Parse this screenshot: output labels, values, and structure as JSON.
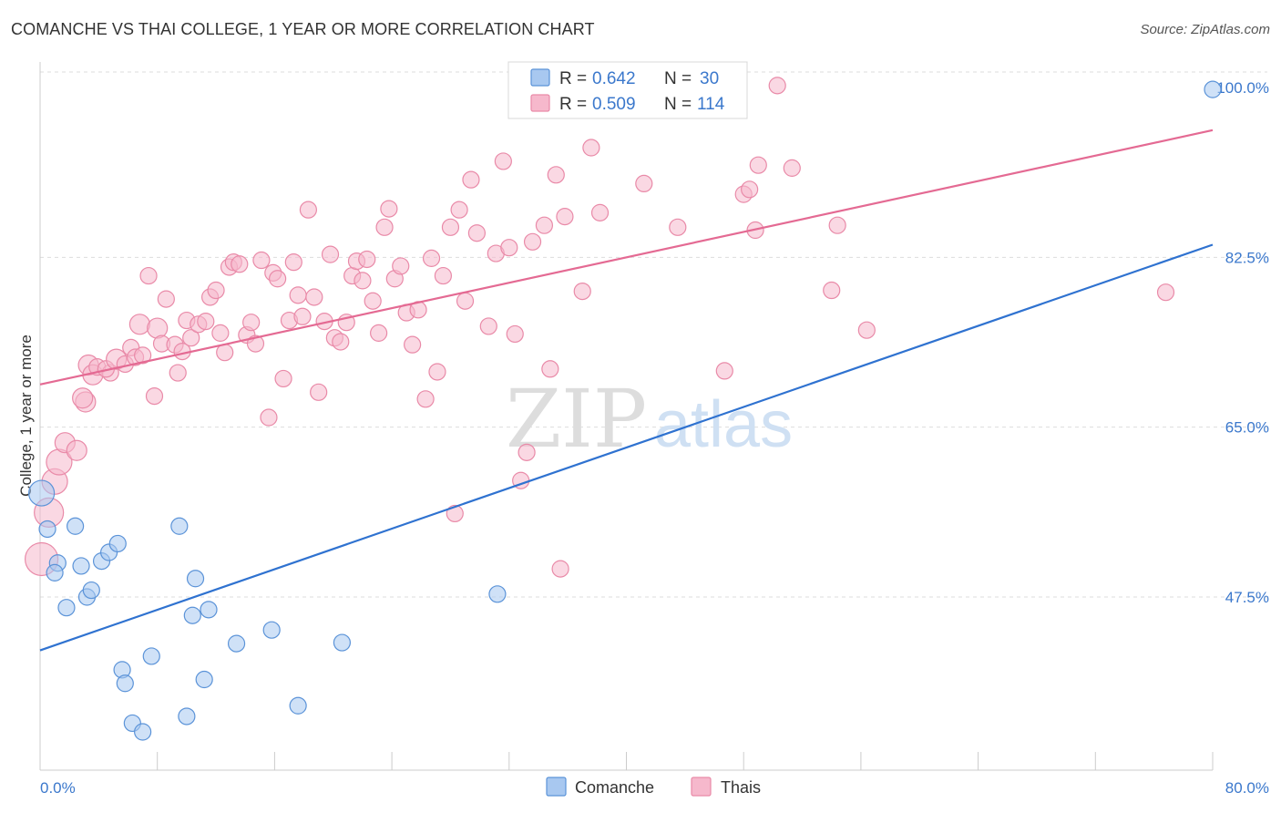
{
  "title": "COMANCHE VS THAI COLLEGE, 1 YEAR OR MORE CORRELATION CHART",
  "source": "Source: ZipAtlas.com",
  "watermark": {
    "zip": "ZIP",
    "atlas": "atlas"
  },
  "colors": {
    "comanche_fill": "#a8c8f0",
    "comanche_stroke": "#5b93d8",
    "comanche_line": "#2f72d0",
    "thai_fill": "#f6b8cc",
    "thai_stroke": "#e98aa8",
    "thai_line": "#e46a93",
    "tick_label": "#3b78cc",
    "grid": "#dddddd"
  },
  "legend": {
    "rows": [
      {
        "r_label": "R =",
        "r_value": "0.642",
        "n_label": "N =",
        "n_value": "30"
      },
      {
        "r_label": "R =",
        "r_value": "0.509",
        "n_label": "N =",
        "n_value": "114"
      }
    ]
  },
  "bottom_legend": {
    "series1": "Comanche",
    "series2": "Thais"
  },
  "chart_data": {
    "type": "scatter",
    "title": "COMANCHE VS THAI COLLEGE, 1 YEAR OR MORE CORRELATION CHART",
    "xlabel": "",
    "ylabel": "College, 1 year or more",
    "xlim": [
      0,
      80
    ],
    "ylim": [
      32,
      101
    ],
    "x_tick_labels": [
      "0.0%",
      "80.0%"
    ],
    "y_ticks": [
      47.5,
      65.0,
      82.5,
      100.0
    ],
    "y_tick_labels": [
      "47.5%",
      "65.0%",
      "82.5%",
      "100.0%"
    ],
    "series": [
      {
        "name": "Comanche",
        "trend": {
          "x": [
            0,
            80
          ],
          "y": [
            42.0,
            83.8
          ]
        },
        "points": [
          [
            0.1,
            58.2,
            14
          ],
          [
            0.5,
            54.5,
            9
          ],
          [
            1.2,
            51.0,
            9
          ],
          [
            1.0,
            50.0,
            9
          ],
          [
            2.4,
            54.8,
            9
          ],
          [
            1.8,
            46.4,
            9
          ],
          [
            2.8,
            50.7,
            9
          ],
          [
            3.2,
            47.5,
            9
          ],
          [
            3.5,
            48.2,
            9
          ],
          [
            4.2,
            51.2,
            9
          ],
          [
            4.7,
            52.1,
            9
          ],
          [
            5.3,
            53.0,
            9
          ],
          [
            5.6,
            40.0,
            9
          ],
          [
            5.8,
            38.6,
            9
          ],
          [
            7.6,
            41.4,
            9
          ],
          [
            6.3,
            34.5,
            9
          ],
          [
            7.0,
            33.6,
            9
          ],
          [
            9.5,
            54.8,
            9
          ],
          [
            10.0,
            35.2,
            9
          ],
          [
            10.4,
            45.6,
            9
          ],
          [
            10.6,
            49.4,
            9
          ],
          [
            11.2,
            39.0,
            9
          ],
          [
            11.5,
            46.2,
            9
          ],
          [
            13.4,
            42.7,
            9
          ],
          [
            15.8,
            44.1,
            9
          ],
          [
            17.6,
            36.3,
            9
          ],
          [
            20.6,
            42.8,
            9
          ],
          [
            31.2,
            47.8,
            9
          ],
          [
            80.0,
            99.8,
            9
          ]
        ]
      },
      {
        "name": "Thais",
        "trend": {
          "x": [
            0,
            80
          ],
          "y": [
            69.4,
            95.6
          ]
        },
        "points": [
          [
            0.1,
            51.4,
            18
          ],
          [
            0.6,
            56.2,
            16
          ],
          [
            1.0,
            59.4,
            14
          ],
          [
            1.3,
            61.4,
            14
          ],
          [
            1.7,
            63.4,
            11
          ],
          [
            2.5,
            62.6,
            11
          ],
          [
            3.1,
            67.6,
            11
          ],
          [
            2.9,
            68.0,
            11
          ],
          [
            3.3,
            71.4,
            11
          ],
          [
            3.6,
            70.4,
            11
          ],
          [
            3.9,
            71.2,
            9
          ],
          [
            4.8,
            70.6,
            9
          ],
          [
            4.5,
            71.0,
            9
          ],
          [
            5.2,
            72.0,
            11
          ],
          [
            5.8,
            71.5,
            9
          ],
          [
            6.2,
            73.2,
            9
          ],
          [
            6.5,
            72.2,
            9
          ],
          [
            6.8,
            75.6,
            11
          ],
          [
            7.0,
            72.4,
            9
          ],
          [
            7.4,
            80.6,
            9
          ],
          [
            7.8,
            68.2,
            9
          ],
          [
            8.0,
            75.2,
            11
          ],
          [
            8.3,
            73.6,
            9
          ],
          [
            8.6,
            78.2,
            9
          ],
          [
            9.2,
            73.5,
            9
          ],
          [
            9.4,
            70.6,
            9
          ],
          [
            9.7,
            72.8,
            9
          ],
          [
            10.0,
            76.0,
            9
          ],
          [
            10.3,
            74.2,
            9
          ],
          [
            10.8,
            75.6,
            9
          ],
          [
            11.3,
            75.9,
            9
          ],
          [
            11.6,
            78.4,
            9
          ],
          [
            12.0,
            79.1,
            9
          ],
          [
            12.3,
            74.7,
            9
          ],
          [
            12.6,
            72.7,
            9
          ],
          [
            12.9,
            81.5,
            9
          ],
          [
            13.2,
            82.0,
            9
          ],
          [
            13.6,
            81.8,
            9
          ],
          [
            14.1,
            74.5,
            9
          ],
          [
            14.4,
            75.8,
            9
          ],
          [
            14.7,
            73.6,
            9
          ],
          [
            15.1,
            82.2,
            9
          ],
          [
            15.6,
            66.0,
            9
          ],
          [
            15.9,
            80.9,
            9
          ],
          [
            16.2,
            80.3,
            9
          ],
          [
            16.6,
            70.0,
            9
          ],
          [
            17.0,
            76.0,
            9
          ],
          [
            17.3,
            82.0,
            9
          ],
          [
            17.6,
            78.6,
            9
          ],
          [
            17.9,
            76.4,
            9
          ],
          [
            18.3,
            87.4,
            9
          ],
          [
            18.7,
            78.4,
            9
          ],
          [
            19.0,
            68.6,
            9
          ],
          [
            19.4,
            75.9,
            9
          ],
          [
            19.8,
            82.8,
            9
          ],
          [
            20.1,
            74.2,
            9
          ],
          [
            20.5,
            73.8,
            9
          ],
          [
            20.9,
            75.8,
            9
          ],
          [
            21.3,
            80.6,
            9
          ],
          [
            21.6,
            82.1,
            9
          ],
          [
            22.0,
            80.1,
            9
          ],
          [
            22.3,
            82.3,
            9
          ],
          [
            22.7,
            78.0,
            9
          ],
          [
            23.1,
            74.7,
            9
          ],
          [
            23.5,
            85.6,
            9
          ],
          [
            23.8,
            87.5,
            9
          ],
          [
            24.2,
            80.3,
            9
          ],
          [
            24.6,
            81.6,
            9
          ],
          [
            25.0,
            76.8,
            9
          ],
          [
            25.4,
            73.5,
            9
          ],
          [
            25.8,
            77.1,
            9
          ],
          [
            26.3,
            67.9,
            9
          ],
          [
            26.7,
            82.4,
            9
          ],
          [
            27.1,
            70.7,
            9
          ],
          [
            27.5,
            80.6,
            9
          ],
          [
            28.0,
            85.6,
            9
          ],
          [
            28.3,
            56.1,
            9
          ],
          [
            28.6,
            87.4,
            9
          ],
          [
            29.0,
            78.0,
            9
          ],
          [
            29.4,
            90.5,
            9
          ],
          [
            29.8,
            85.0,
            9
          ],
          [
            30.6,
            75.4,
            9
          ],
          [
            31.1,
            82.9,
            9
          ],
          [
            31.6,
            92.4,
            9
          ],
          [
            32.0,
            83.5,
            9
          ],
          [
            32.4,
            74.6,
            9
          ],
          [
            32.8,
            59.5,
            9
          ],
          [
            33.2,
            62.4,
            9
          ],
          [
            33.6,
            84.1,
            9
          ],
          [
            34.4,
            85.8,
            9
          ],
          [
            34.8,
            71.0,
            9
          ],
          [
            35.2,
            91.0,
            9
          ],
          [
            35.5,
            50.4,
            9
          ],
          [
            35.8,
            86.7,
            9
          ],
          [
            37.0,
            79.0,
            9
          ],
          [
            37.6,
            93.8,
            9
          ],
          [
            38.2,
            87.1,
            9
          ],
          [
            41.2,
            90.1,
            9
          ],
          [
            43.5,
            85.6,
            9
          ],
          [
            46.7,
            70.8,
            9
          ],
          [
            48.0,
            89.0,
            9
          ],
          [
            48.4,
            89.5,
            9
          ],
          [
            48.8,
            85.3,
            9
          ],
          [
            49.0,
            92.0,
            9
          ],
          [
            50.3,
            100.2,
            9
          ],
          [
            51.3,
            91.7,
            9
          ],
          [
            54.4,
            85.8,
            9
          ],
          [
            54.0,
            79.1,
            9
          ],
          [
            56.4,
            75.0,
            9
          ],
          [
            76.8,
            78.9,
            9
          ]
        ]
      }
    ]
  }
}
